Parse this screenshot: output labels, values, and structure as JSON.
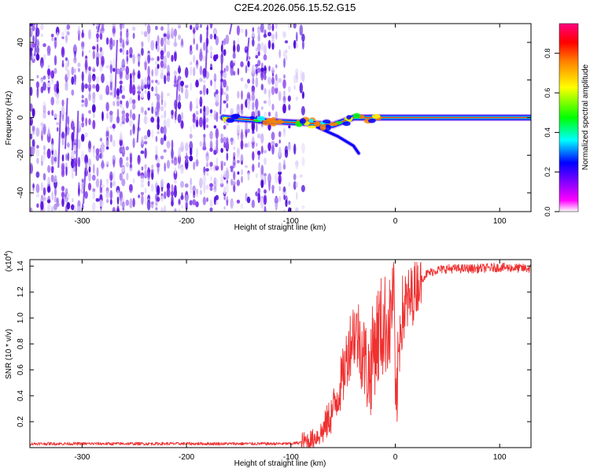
{
  "title": "C2E4.2026.056.15.52.G15",
  "chart_data": [
    {
      "type": "heatmap",
      "xlabel": "Height of straight line (km)",
      "ylabel": "Frequency (Hz)",
      "xlim": [
        -350,
        130
      ],
      "ylim": [
        -50,
        50
      ],
      "xticks": [
        -300,
        -200,
        -100,
        0,
        100
      ],
      "yticks": [
        -40,
        -20,
        0,
        20,
        40
      ],
      "colorbar": {
        "label": "Normalized spectral amplitude",
        "range": [
          0,
          0.95
        ],
        "ticks": [
          0.0,
          0.2,
          0.4,
          0.6,
          0.8
        ],
        "colormap": [
          "#ffffff",
          "#ff00ff",
          "#8000ff",
          "#0000ff",
          "#00ffff",
          "#00ff00",
          "#ffff00",
          "#ff8000",
          "#ff0000",
          "#ff0080"
        ]
      },
      "features": {
        "noise_region_x": [
          -350,
          -85
        ],
        "main_signal": [
          {
            "x": -165,
            "f": 0
          },
          {
            "x": -120,
            "f": -2
          },
          {
            "x": -80,
            "f": -3
          },
          {
            "x": -60,
            "f": -4
          },
          {
            "x": -40,
            "f": 0
          },
          {
            "x": -20,
            "f": 0
          },
          {
            "x": 0,
            "f": 0
          },
          {
            "x": 50,
            "f": 0
          },
          {
            "x": 100,
            "f": 0
          },
          {
            "x": 130,
            "f": 0
          }
        ],
        "secondary_branch": [
          {
            "x": -75,
            "f": -5
          },
          {
            "x": -55,
            "f": -10
          },
          {
            "x": -40,
            "f": -15
          },
          {
            "x": -35,
            "f": -19
          }
        ]
      }
    },
    {
      "type": "line",
      "xlabel": "Height of straight line (km)",
      "ylabel": "SNR (10 * v/v)",
      "yscale_label": "(x10",
      "yscale_exp": "4",
      "scale_multiplier": 10000,
      "xlim": [
        -350,
        130
      ],
      "ylim": [
        0,
        1.45
      ],
      "xticks": [
        -300,
        -200,
        -100,
        0,
        100
      ],
      "yticks": [
        0.2,
        0.4,
        0.6,
        0.8,
        1.0,
        1.2,
        1.4
      ],
      "color": "#f03030",
      "series": [
        {
          "values_note": "",
          "x": [
            -350,
            -250,
            -150,
            -100,
            -90,
            -80,
            -70,
            -60,
            -50,
            -45,
            -40,
            -35,
            -30,
            -25,
            -20,
            -15,
            -10,
            -5,
            -1,
            0,
            5,
            10,
            15,
            20,
            25,
            30,
            40,
            50,
            75,
            100,
            130
          ],
          "y": [
            0.03,
            0.03,
            0.03,
            0.03,
            0.04,
            0.06,
            0.12,
            0.28,
            0.55,
            0.75,
            0.9,
            0.85,
            0.7,
            0.55,
            0.8,
            0.9,
            0.95,
            0.95,
            1.35,
            0.15,
            1.0,
            1.1,
            1.15,
            1.25,
            1.3,
            1.34,
            1.37,
            1.38,
            1.38,
            1.39,
            1.38
          ]
        }
      ]
    }
  ]
}
